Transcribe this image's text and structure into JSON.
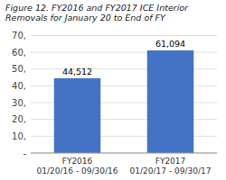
{
  "chart_data": {
    "type": "bar",
    "title": "Figure 12. FY2016 and FY2017 ICE Interior Removals for January 20 to End of FY",
    "categories": [
      "FY2016\n01/20/16 - 09/30/16",
      "FY2017\n01/20/17 - 09/30/17"
    ],
    "values": [
      44512,
      61094
    ],
    "value_labels": [
      "44,512",
      "61,094"
    ],
    "data_labels": true,
    "color": "#4472C4",
    "ylim": [
      0,
      70000
    ],
    "yticks": [
      {
        "value": 0,
        "label": "-"
      },
      {
        "value": 10000,
        "label": "10,"
      },
      {
        "value": 20000,
        "label": "20,"
      },
      {
        "value": 30000,
        "label": "30,"
      },
      {
        "value": 40000,
        "label": "40,"
      },
      {
        "value": 50000,
        "label": "50,"
      },
      {
        "value": 60000,
        "label": "60,"
      },
      {
        "value": 70000,
        "label": "70,"
      }
    ],
    "grid": true
  }
}
